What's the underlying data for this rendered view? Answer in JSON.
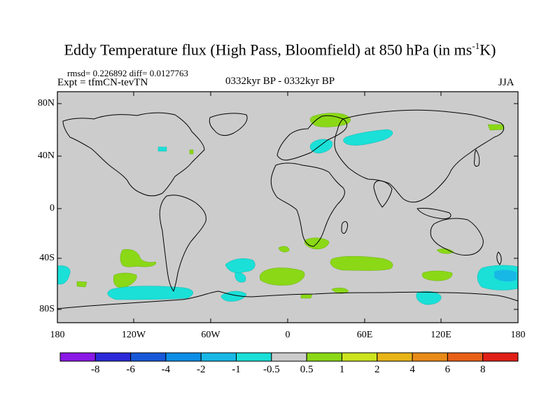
{
  "title_main": "Eddy Temperature flux (High Pass, Bloomfield) at 850 hPa (in ms",
  "title_sup": "-1",
  "title_end": "K)",
  "stats": "rmsd= 0.226892 diff= 0.0127763",
  "experiment": "Expt = tfmCN-tevTN",
  "period": "0332kyr BP - 0332kyr BP",
  "season": "JJA",
  "lat_labels": [
    "80N",
    "40N",
    "0",
    "40S",
    "80S"
  ],
  "lon_labels": [
    "180",
    "120W",
    "60W",
    "0",
    "60E",
    "120E",
    "180"
  ],
  "colorbar": {
    "labels": [
      "-8",
      "-6",
      "-4",
      "-2",
      "-1",
      "-0.5",
      "0.5",
      "1",
      "2",
      "4",
      "6",
      "8"
    ],
    "colors": [
      "#8a18e6",
      "#2c2ad8",
      "#1858d8",
      "#0d8ee6",
      "#18b8e6",
      "#1ae0d8",
      "#cccccc",
      "#8ad816",
      "#cce31e",
      "#e8b418",
      "#e88a18",
      "#e86018",
      "#e02018"
    ]
  },
  "map": {
    "background": "#cccccc",
    "positive_color": "#8ad816",
    "negative_color": "#1ae0d8",
    "strong_negative_color": "#18b8e6"
  }
}
